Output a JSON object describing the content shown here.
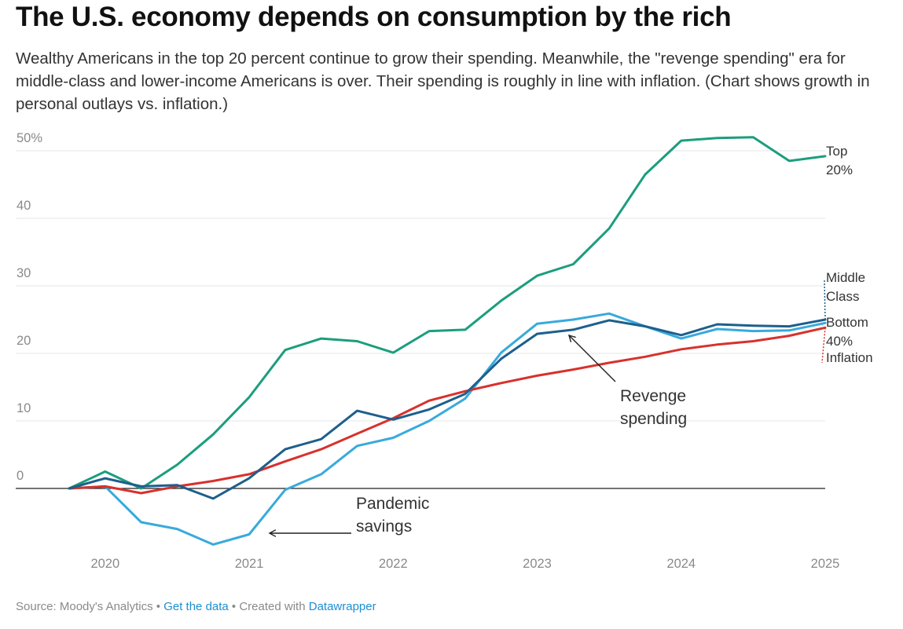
{
  "title": "The U.S. economy depends on consumption by the rich",
  "subtitle": "Wealthy Americans in the top 20 percent continue to grow their spending. Meanwhile, the \"revenge spending\" era for middle-class and lower-income Americans is over. Their spending is roughly in line with inflation. (Chart shows growth in personal outlays vs. inflation.)",
  "footer": {
    "source": "Source: Moody's Analytics",
    "sep1": " • ",
    "get_data": "Get the data",
    "sep2": " • Created with ",
    "datawrapper": "Datawrapper"
  },
  "chart_data": {
    "type": "line",
    "x": [
      2019.75,
      2020.0,
      2020.25,
      2020.5,
      2020.75,
      2021.0,
      2021.25,
      2021.5,
      2021.75,
      2022.0,
      2022.25,
      2022.5,
      2022.75,
      2023.0,
      2023.25,
      2023.5,
      2023.75,
      2024.0,
      2024.25,
      2024.5,
      2024.75,
      2025.0
    ],
    "xlim": [
      2019.75,
      2025.0
    ],
    "ylim": [
      -8,
      52
    ],
    "x_ticks": [
      {
        "value": 2020.0,
        "label": "2020"
      },
      {
        "value": 2021.0,
        "label": "2021"
      },
      {
        "value": 2022.0,
        "label": "2022"
      },
      {
        "value": 2023.0,
        "label": "2023"
      },
      {
        "value": 2024.0,
        "label": "2024"
      },
      {
        "value": 2025.0,
        "label": "2025"
      }
    ],
    "y_ticks": [
      {
        "value": 0,
        "label": "0"
      },
      {
        "value": 10,
        "label": "10"
      },
      {
        "value": 20,
        "label": "20"
      },
      {
        "value": 30,
        "label": "30"
      },
      {
        "value": 40,
        "label": "40"
      },
      {
        "value": 50,
        "label": "50%"
      }
    ],
    "grid": "horizontal",
    "series": [
      {
        "name": "Top 20%",
        "label_lines": [
          "Top",
          "20%"
        ],
        "color": "#1b9e7d",
        "values": [
          0,
          2.5,
          0,
          3.5,
          8,
          13.5,
          20.5,
          22.2,
          21.8,
          20.1,
          23.3,
          23.5,
          27.8,
          31.5,
          33.2,
          38.5,
          46.5,
          51.5,
          51.9,
          52.0,
          48.5,
          49.2
        ]
      },
      {
        "name": "Middle Class",
        "label_lines": [
          "Middle",
          "Class"
        ],
        "color": "#1e5f8c",
        "values": [
          0,
          1.5,
          0.3,
          0.5,
          -1.5,
          1.5,
          5.8,
          7.3,
          11.5,
          10.2,
          11.7,
          14.0,
          19.2,
          22.9,
          23.5,
          24.9,
          24.0,
          22.7,
          24.3,
          24.1,
          24.0,
          25.0
        ]
      },
      {
        "name": "Bottom 40%",
        "label_lines": [
          "Bottom",
          "40%"
        ],
        "color": "#38aadc",
        "values": [
          0,
          0.3,
          -5.0,
          -6.0,
          -8.3,
          -6.8,
          -0.2,
          2.1,
          6.3,
          7.5,
          10.0,
          13.3,
          20.1,
          24.4,
          25.0,
          25.9,
          24.0,
          22.2,
          23.6,
          23.3,
          23.4,
          24.5
        ]
      },
      {
        "name": "Inflation",
        "label_lines": [
          "Inflation"
        ],
        "color": "#d8312c",
        "values": [
          0,
          0.3,
          -0.7,
          0.3,
          1.1,
          2.1,
          4.0,
          5.8,
          8.1,
          10.4,
          13.0,
          14.4,
          15.6,
          16.7,
          17.6,
          18.6,
          19.5,
          20.6,
          21.3,
          21.8,
          22.6,
          23.8
        ]
      }
    ],
    "annotations": [
      {
        "lines": [
          "Pandemic",
          "savings"
        ]
      },
      {
        "lines": [
          "Revenge",
          "spending"
        ]
      }
    ]
  }
}
